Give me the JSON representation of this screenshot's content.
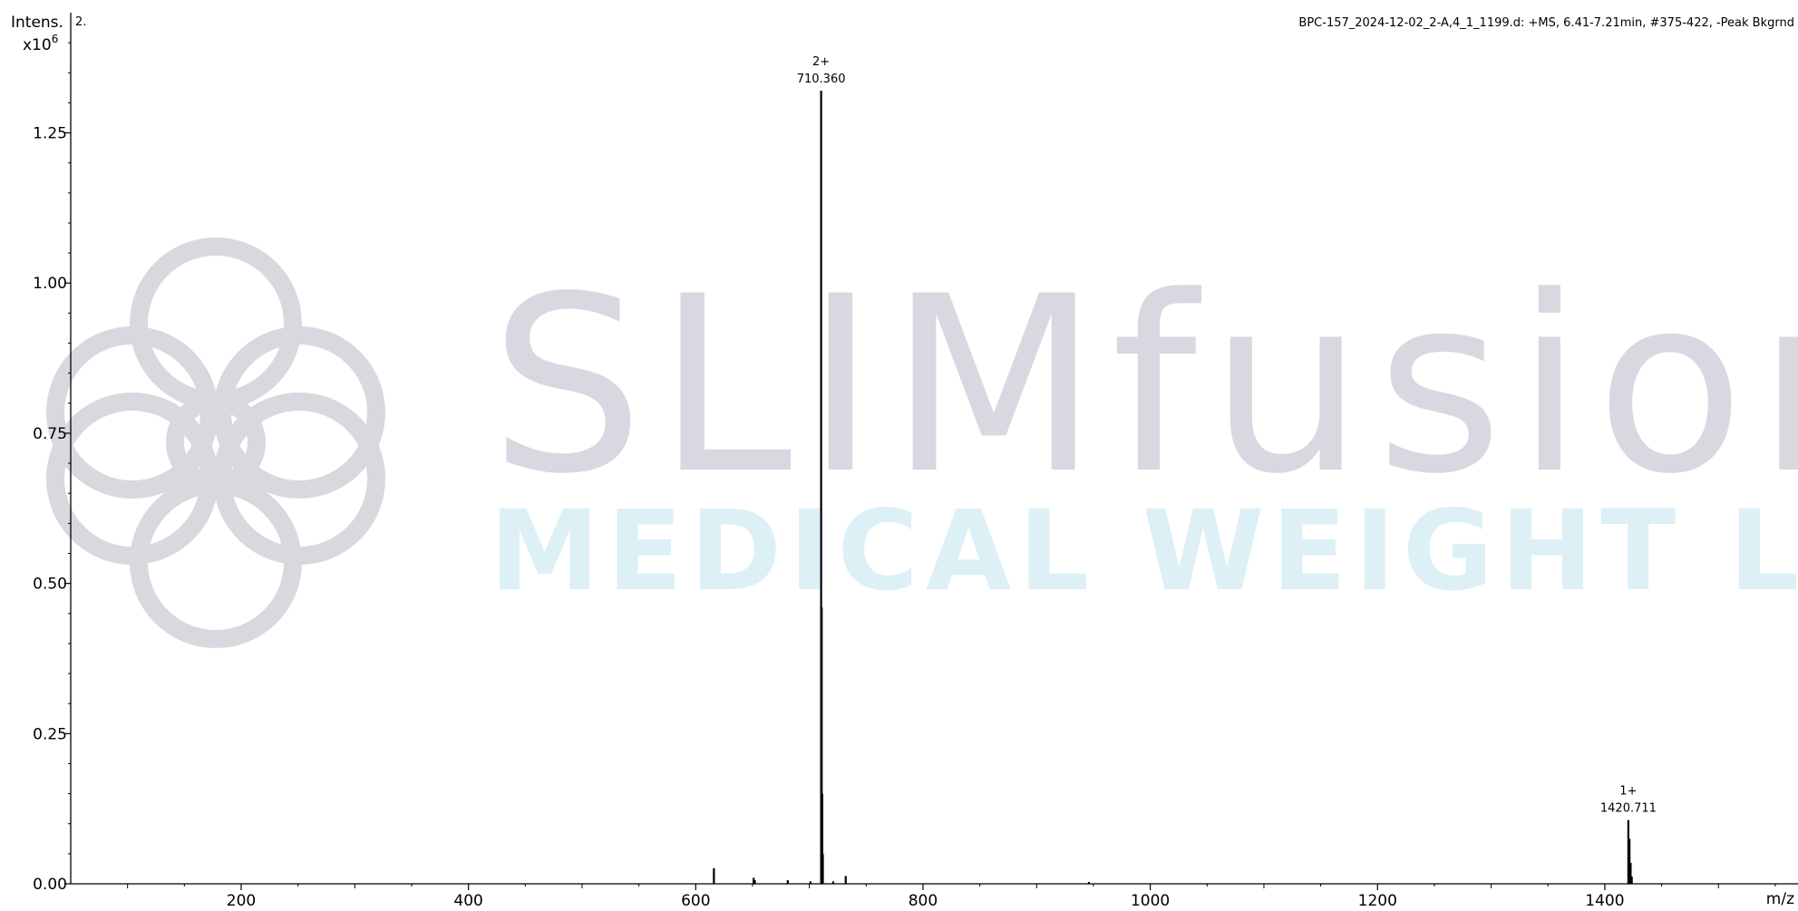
{
  "spectrum_label": "2.",
  "header_info": "BPC-157_2024-12-02_2-A,4_1_1199.d: +MS, 6.41-7.21min, #375-422, -Peak Bkgrnd",
  "watermark": {
    "line1": "SLIMfusion",
    "line2": "MEDICAL WEIGHT LOSS",
    "color_line1": "#d9d7e0",
    "color_line2": "#dcf0f6",
    "logo_color": "#dad8de"
  },
  "chart_data": {
    "type": "line",
    "title": "",
    "xlabel": "m/z",
    "ylabel": "Intens.",
    "y_multiplier": "x10^6",
    "xlim": [
      50,
      1570
    ],
    "ylim": [
      0,
      1.45
    ],
    "x_ticks": [
      200,
      400,
      600,
      800,
      1000,
      1200,
      1400
    ],
    "x_tick_labels": [
      "200",
      "400",
      "600",
      "800",
      "1000",
      "1200",
      "1400"
    ],
    "y_ticks": [
      0,
      0.25,
      0.5,
      0.75,
      1.0,
      1.25
    ],
    "y_tick_labels": [
      "0.00",
      "0.25",
      "0.50",
      "0.75",
      "1.00",
      "1.25"
    ],
    "grid": false,
    "line_color": "#000000",
    "peaks": [
      {
        "mz": 616.0,
        "intensity": 0.026
      },
      {
        "mz": 651.0,
        "intensity": 0.01
      },
      {
        "mz": 652.0,
        "intensity": 0.006
      },
      {
        "mz": 681.0,
        "intensity": 0.006
      },
      {
        "mz": 701.0,
        "intensity": 0.004
      },
      {
        "mz": 710.36,
        "intensity": 1.32
      },
      {
        "mz": 710.86,
        "intensity": 0.46
      },
      {
        "mz": 711.36,
        "intensity": 0.15
      },
      {
        "mz": 711.86,
        "intensity": 0.05
      },
      {
        "mz": 721.0,
        "intensity": 0.004
      },
      {
        "mz": 732.0,
        "intensity": 0.013
      },
      {
        "mz": 946.0,
        "intensity": 0.003
      },
      {
        "mz": 1420.711,
        "intensity": 0.106
      },
      {
        "mz": 1421.711,
        "intensity": 0.075
      },
      {
        "mz": 1422.711,
        "intensity": 0.035
      },
      {
        "mz": 1423.711,
        "intensity": 0.012
      }
    ],
    "annotations": [
      {
        "mz": 710.36,
        "intensity": 1.32,
        "charge": "2+",
        "label": "710.360"
      },
      {
        "mz": 1420.711,
        "intensity": 0.106,
        "charge": "1+",
        "label": "1420.711"
      }
    ]
  }
}
